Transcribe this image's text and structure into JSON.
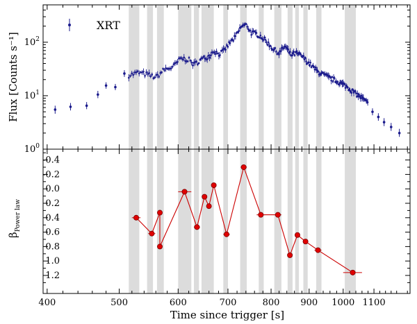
{
  "chart_data": [
    {
      "type": "scatter",
      "panel": "top",
      "series": [
        {
          "name": "XRT"
        }
      ],
      "ylabel": "Flux [Counts s⁻¹]",
      "yscale": "log",
      "xscale": "log",
      "ylim": [
        1,
        500
      ],
      "yticks": [
        {
          "value": 1,
          "base": "10",
          "exp": "0"
        },
        {
          "value": 10,
          "base": "10",
          "exp": "1"
        },
        {
          "value": 100,
          "base": "10",
          "exp": "2"
        }
      ],
      "marker_color": "#1a1a8c",
      "sparse_points": [
        {
          "x": 410,
          "y": 5.5,
          "lo": 4.6,
          "hi": 6.5
        },
        {
          "x": 430,
          "y": 6.2,
          "lo": 5.3,
          "hi": 7.3
        },
        {
          "x": 452,
          "y": 6.5,
          "lo": 5.6,
          "hi": 7.6
        },
        {
          "x": 468,
          "y": 10.5,
          "lo": 9.0,
          "hi": 12.3
        },
        {
          "x": 480,
          "y": 15.5,
          "lo": 13.5,
          "hi": 17.8
        },
        {
          "x": 494,
          "y": 14.5,
          "lo": 12.7,
          "hi": 16.6
        },
        {
          "x": 508,
          "y": 26,
          "lo": 22.5,
          "hi": 30
        }
      ],
      "light_curve_knots": [
        [
          515,
          24
        ],
        [
          530,
          27
        ],
        [
          545,
          25
        ],
        [
          560,
          22
        ],
        [
          575,
          31
        ],
        [
          590,
          34
        ],
        [
          605,
          50
        ],
        [
          620,
          47
        ],
        [
          630,
          38
        ],
        [
          645,
          48
        ],
        [
          660,
          55
        ],
        [
          670,
          70
        ],
        [
          680,
          60
        ],
        [
          690,
          67
        ],
        [
          705,
          100
        ],
        [
          715,
          120
        ],
        [
          730,
          200
        ],
        [
          742,
          210
        ],
        [
          752,
          150
        ],
        [
          762,
          145
        ],
        [
          775,
          130
        ],
        [
          790,
          100
        ],
        [
          805,
          75
        ],
        [
          820,
          62
        ],
        [
          835,
          85
        ],
        [
          850,
          58
        ],
        [
          865,
          62
        ],
        [
          880,
          55
        ],
        [
          900,
          40
        ],
        [
          925,
          28
        ],
        [
          955,
          22
        ],
        [
          985,
          18
        ],
        [
          1010,
          15
        ],
        [
          1030,
          12
        ],
        [
          1060,
          9
        ],
        [
          1080,
          7
        ]
      ],
      "tail_points": [
        {
          "x": 1095,
          "y": 5.0,
          "lo": 4.3,
          "hi": 5.8
        },
        {
          "x": 1115,
          "y": 4.0,
          "lo": 3.4,
          "hi": 4.7
        },
        {
          "x": 1135,
          "y": 3.2,
          "lo": 2.7,
          "hi": 3.8
        },
        {
          "x": 1160,
          "y": 2.6,
          "lo": 2.2,
          "hi": 3.1
        },
        {
          "x": 1190,
          "y": 2.0,
          "lo": 1.7,
          "hi": 2.4
        }
      ]
    },
    {
      "type": "scatter",
      "panel": "bottom",
      "ylabel": "β",
      "ylabel_sub": "Power law",
      "ylim_inverted": [
        1.45,
        -0.55
      ],
      "yticks": [
        "-0.4",
        "-0.2",
        "0.0",
        "0.2",
        "0.4",
        "0.6",
        "0.8",
        "1.0",
        "1.2"
      ],
      "ytick_values": [
        -0.4,
        -0.2,
        0.0,
        0.2,
        0.4,
        0.6,
        0.8,
        1.0,
        1.2
      ],
      "marker_color": "#e00000",
      "line_color": "#cc0000",
      "points": [
        {
          "x": 527,
          "y": 0.4,
          "xlo": 520,
          "xhi": 534
        },
        {
          "x": 553,
          "y": 0.62,
          "xlo": 547,
          "xhi": 559
        },
        {
          "x": 567,
          "y": 0.33,
          "xlo": 564,
          "xhi": 570
        },
        {
          "x": 567,
          "y": 0.8,
          "xlo": 564,
          "xhi": 570
        },
        {
          "x": 612,
          "y": 0.04,
          "xlo": 600,
          "xhi": 625
        },
        {
          "x": 636,
          "y": 0.53,
          "xlo": 630,
          "xhi": 642
        },
        {
          "x": 651,
          "y": 0.11,
          "xlo": 647,
          "xhi": 655
        },
        {
          "x": 660,
          "y": 0.24,
          "xlo": 656,
          "xhi": 664
        },
        {
          "x": 670,
          "y": -0.05,
          "xlo": 665,
          "xhi": 675
        },
        {
          "x": 697,
          "y": 0.63,
          "xlo": 690,
          "xhi": 704
        },
        {
          "x": 735,
          "y": -0.3,
          "xlo": 728,
          "xhi": 742
        },
        {
          "x": 775,
          "y": 0.36,
          "xlo": 765,
          "xhi": 785
        },
        {
          "x": 817,
          "y": 0.36,
          "xlo": 808,
          "xhi": 826
        },
        {
          "x": 848,
          "y": 0.92,
          "xlo": 842,
          "xhi": 854
        },
        {
          "x": 868,
          "y": 0.64,
          "xlo": 862,
          "xhi": 874
        },
        {
          "x": 890,
          "y": 0.73,
          "xlo": 883,
          "xhi": 897
        },
        {
          "x": 925,
          "y": 0.85,
          "xlo": 915,
          "xhi": 935
        },
        {
          "x": 1030,
          "y": 1.16,
          "xlo": 1000,
          "xhi": 1060
        }
      ]
    }
  ],
  "shared_x": {
    "xlabel": "Time since trigger [s]",
    "xlim": [
      395,
      1230
    ],
    "xticks": [
      "400",
      "500",
      "600",
      "700",
      "800",
      "900",
      "1000",
      "1100"
    ],
    "xtick_values": [
      400,
      500,
      600,
      700,
      800,
      900,
      1000,
      1100
    ]
  },
  "shaded_intervals": [
    [
      515,
      532
    ],
    [
      545,
      555
    ],
    [
      562,
      574
    ],
    [
      600,
      625
    ],
    [
      630,
      640
    ],
    [
      645,
      670
    ],
    [
      690,
      700
    ],
    [
      727,
      742
    ],
    [
      770,
      782
    ],
    [
      808,
      826
    ],
    [
      842,
      855
    ],
    [
      862,
      872
    ],
    [
      884,
      896
    ],
    [
      920,
      935
    ],
    [
      1005,
      1040
    ]
  ],
  "shade_color": "#dcdcdc"
}
